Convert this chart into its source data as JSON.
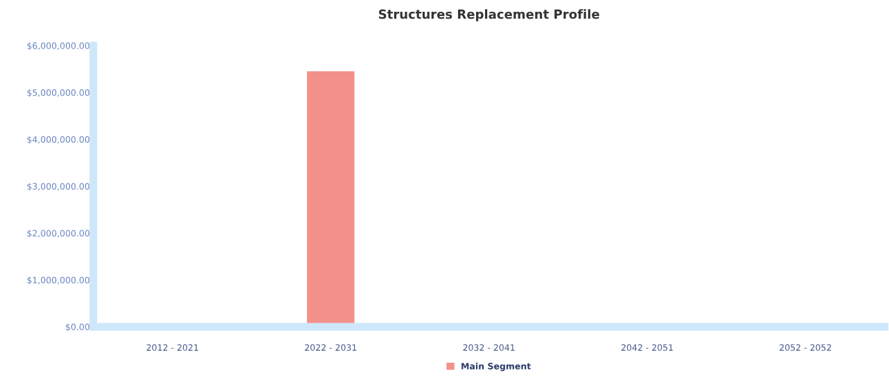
{
  "chart_data": {
    "type": "bar",
    "title": "Structures Replacement Profile",
    "categories": [
      "2012 - 2021",
      "2022 - 2031",
      "2032 - 2041",
      "2042 - 2051",
      "2052 - 2052"
    ],
    "series": [
      {
        "name": "Main Segment",
        "color": "#f4908a",
        "values": [
          0,
          5450000,
          0,
          0,
          0
        ]
      }
    ],
    "ylim": [
      0,
      6000000
    ],
    "yticks": [
      {
        "value": 0,
        "label": "$0.00"
      },
      {
        "value": 1000000,
        "label": "$1,000,000.00"
      },
      {
        "value": 2000000,
        "label": "$2,000,000.00"
      },
      {
        "value": 3000000,
        "label": "$3,000,000.00"
      },
      {
        "value": 4000000,
        "label": "$4,000,000.00"
      },
      {
        "value": 5000000,
        "label": "$5,000,000.00"
      },
      {
        "value": 6000000,
        "label": "$6,000,000.00"
      }
    ],
    "grid": false,
    "legend": "bottom"
  }
}
